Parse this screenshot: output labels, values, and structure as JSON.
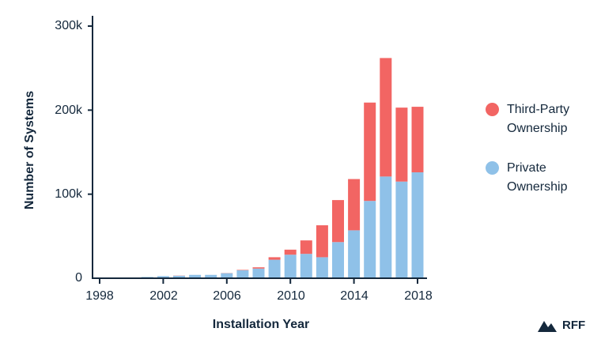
{
  "chart_data": {
    "type": "bar",
    "stacked": true,
    "title": "",
    "xlabel": "Installation Year",
    "ylabel": "Number of Systems",
    "ylim": [
      0,
      300000
    ],
    "yticks": [
      0,
      100000,
      200000,
      300000
    ],
    "ytick_labels": [
      "0",
      "100k",
      "200k",
      "300k"
    ],
    "xtick_labels": [
      "1998",
      "2002",
      "2006",
      "2010",
      "2014",
      "2018"
    ],
    "grid": false,
    "legend_position": "right",
    "categories": [
      "1998",
      "1999",
      "2000",
      "2001",
      "2002",
      "2003",
      "2004",
      "2005",
      "2006",
      "2007",
      "2008",
      "2009",
      "2010",
      "2011",
      "2012",
      "2013",
      "2014",
      "2015",
      "2016",
      "2017",
      "2018"
    ],
    "series": [
      {
        "name": "Private Ownership",
        "color": "#8fc1e8",
        "values": [
          300,
          500,
          800,
          1500,
          2500,
          3000,
          4000,
          4000,
          6000,
          9500,
          11500,
          22000,
          28000,
          29000,
          25000,
          43000,
          57000,
          92000,
          121000,
          115000,
          126000
        ]
      },
      {
        "name": "Third-Party Ownership",
        "color": "#f26563",
        "values": [
          0,
          0,
          0,
          0,
          0,
          200,
          0,
          0,
          200,
          500,
          1500,
          3000,
          6000,
          16000,
          38000,
          50000,
          61000,
          117000,
          141000,
          88000,
          78000
        ]
      }
    ]
  },
  "legend": {
    "items": [
      {
        "label_line1": "Third-Party",
        "label_line2": "Ownership",
        "color": "#f26563"
      },
      {
        "label_line1": "Private",
        "label_line2": "Ownership",
        "color": "#8fc1e8"
      }
    ]
  },
  "branding": {
    "logo_text": "RFF",
    "logo_icon": "mountain-icon"
  },
  "colors": {
    "axis": "#14283c",
    "text": "#14283c"
  }
}
